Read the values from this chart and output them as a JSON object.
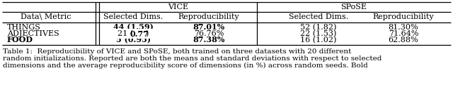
{
  "title_text": "Table 1:  Reproducibility of VICE and SPoSE, both trained on three datasets with 20 different\nrandom initializations. Reported are both the means and standard deviations with respect to selected\ndimensions and the average reproducibility score of dimensions (in %) across random seeds. Bold",
  "rows": [
    [
      "THINGS",
      "44 (1.59)",
      "87.01%",
      "52 (1.82)",
      "81.30%"
    ],
    [
      "ADJECTIVES",
      "21 (0.77)",
      "76.76%",
      "22 (1.53)",
      "71.64%"
    ],
    [
      "FOOD",
      "5 (0.95)",
      "87.38%",
      "16 (1.02)",
      "62.88%"
    ]
  ],
  "bold_things": [
    false,
    true,
    true,
    false,
    false
  ],
  "bold_adjectives": [
    false,
    true,
    false,
    false,
    false
  ],
  "bold_food": [
    true,
    true,
    true,
    false,
    false
  ],
  "background_color": "#ffffff",
  "text_color": "#000000",
  "fs_table": 8.0,
  "fs_caption": 7.5
}
